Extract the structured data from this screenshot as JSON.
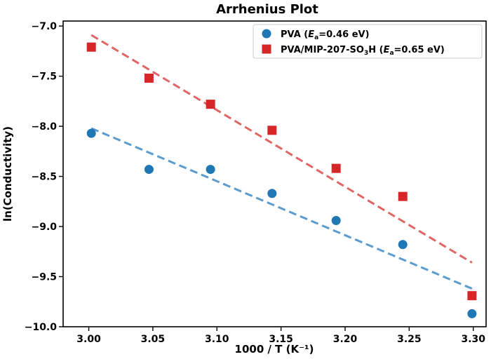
{
  "chart_data": {
    "type": "scatter",
    "title": "Arrhenius Plot",
    "xlabel": "1000 / T (K⁻¹)",
    "ylabel": "ln(Conductivity)",
    "xlim": [
      2.98,
      3.31
    ],
    "ylim": [
      -10.0,
      -6.95
    ],
    "xticks": [
      3.0,
      3.05,
      3.1,
      3.15,
      3.2,
      3.25,
      3.3
    ],
    "xtick_labels": [
      "3.00",
      "3.05",
      "3.10",
      "3.15",
      "3.20",
      "3.25",
      "3.30"
    ],
    "yticks": [
      -10.0,
      -9.5,
      -9.0,
      -8.5,
      -8.0,
      -7.5,
      -7.0
    ],
    "ytick_labels": [
      "−10.0",
      "−9.5",
      "−9.0",
      "−8.5",
      "−8.0",
      "−7.5",
      "−7.0"
    ],
    "grid": false,
    "legend_position": "top-right",
    "series": [
      {
        "name": "PVA (Ea=0.46 eV)",
        "legend_main": "PVA (",
        "legend_italic": "E",
        "legend_sub": "a",
        "legend_rest": "=0.46 eV)",
        "marker": "circle",
        "color": "#1f77b4",
        "x": [
          3.002,
          3.047,
          3.095,
          3.143,
          3.193,
          3.245,
          3.299
        ],
        "y": [
          -8.07,
          -8.43,
          -8.43,
          -8.67,
          -8.94,
          -9.18,
          -9.87
        ],
        "fit": {
          "x": [
            3.002,
            3.299
          ],
          "y": [
            -8.02,
            -9.62
          ],
          "color": "#5a9bd0"
        }
      },
      {
        "name": "PVA/MIP-207-SO3H (Ea=0.65 eV)",
        "legend_main": "PVA/MIP-207-SO",
        "legend_sub1": "3",
        "legend_mid": "H (",
        "legend_italic": "E",
        "legend_sub": "a",
        "legend_rest": "=0.65 eV)",
        "marker": "square",
        "color": "#d62728",
        "x": [
          3.002,
          3.047,
          3.095,
          3.143,
          3.193,
          3.245,
          3.299
        ],
        "y": [
          -7.21,
          -7.52,
          -7.78,
          -8.04,
          -8.42,
          -8.7,
          -9.69
        ],
        "fit": {
          "x": [
            3.002,
            3.299
          ],
          "y": [
            -7.09,
            -9.36
          ],
          "color": "#e06666"
        }
      }
    ]
  }
}
